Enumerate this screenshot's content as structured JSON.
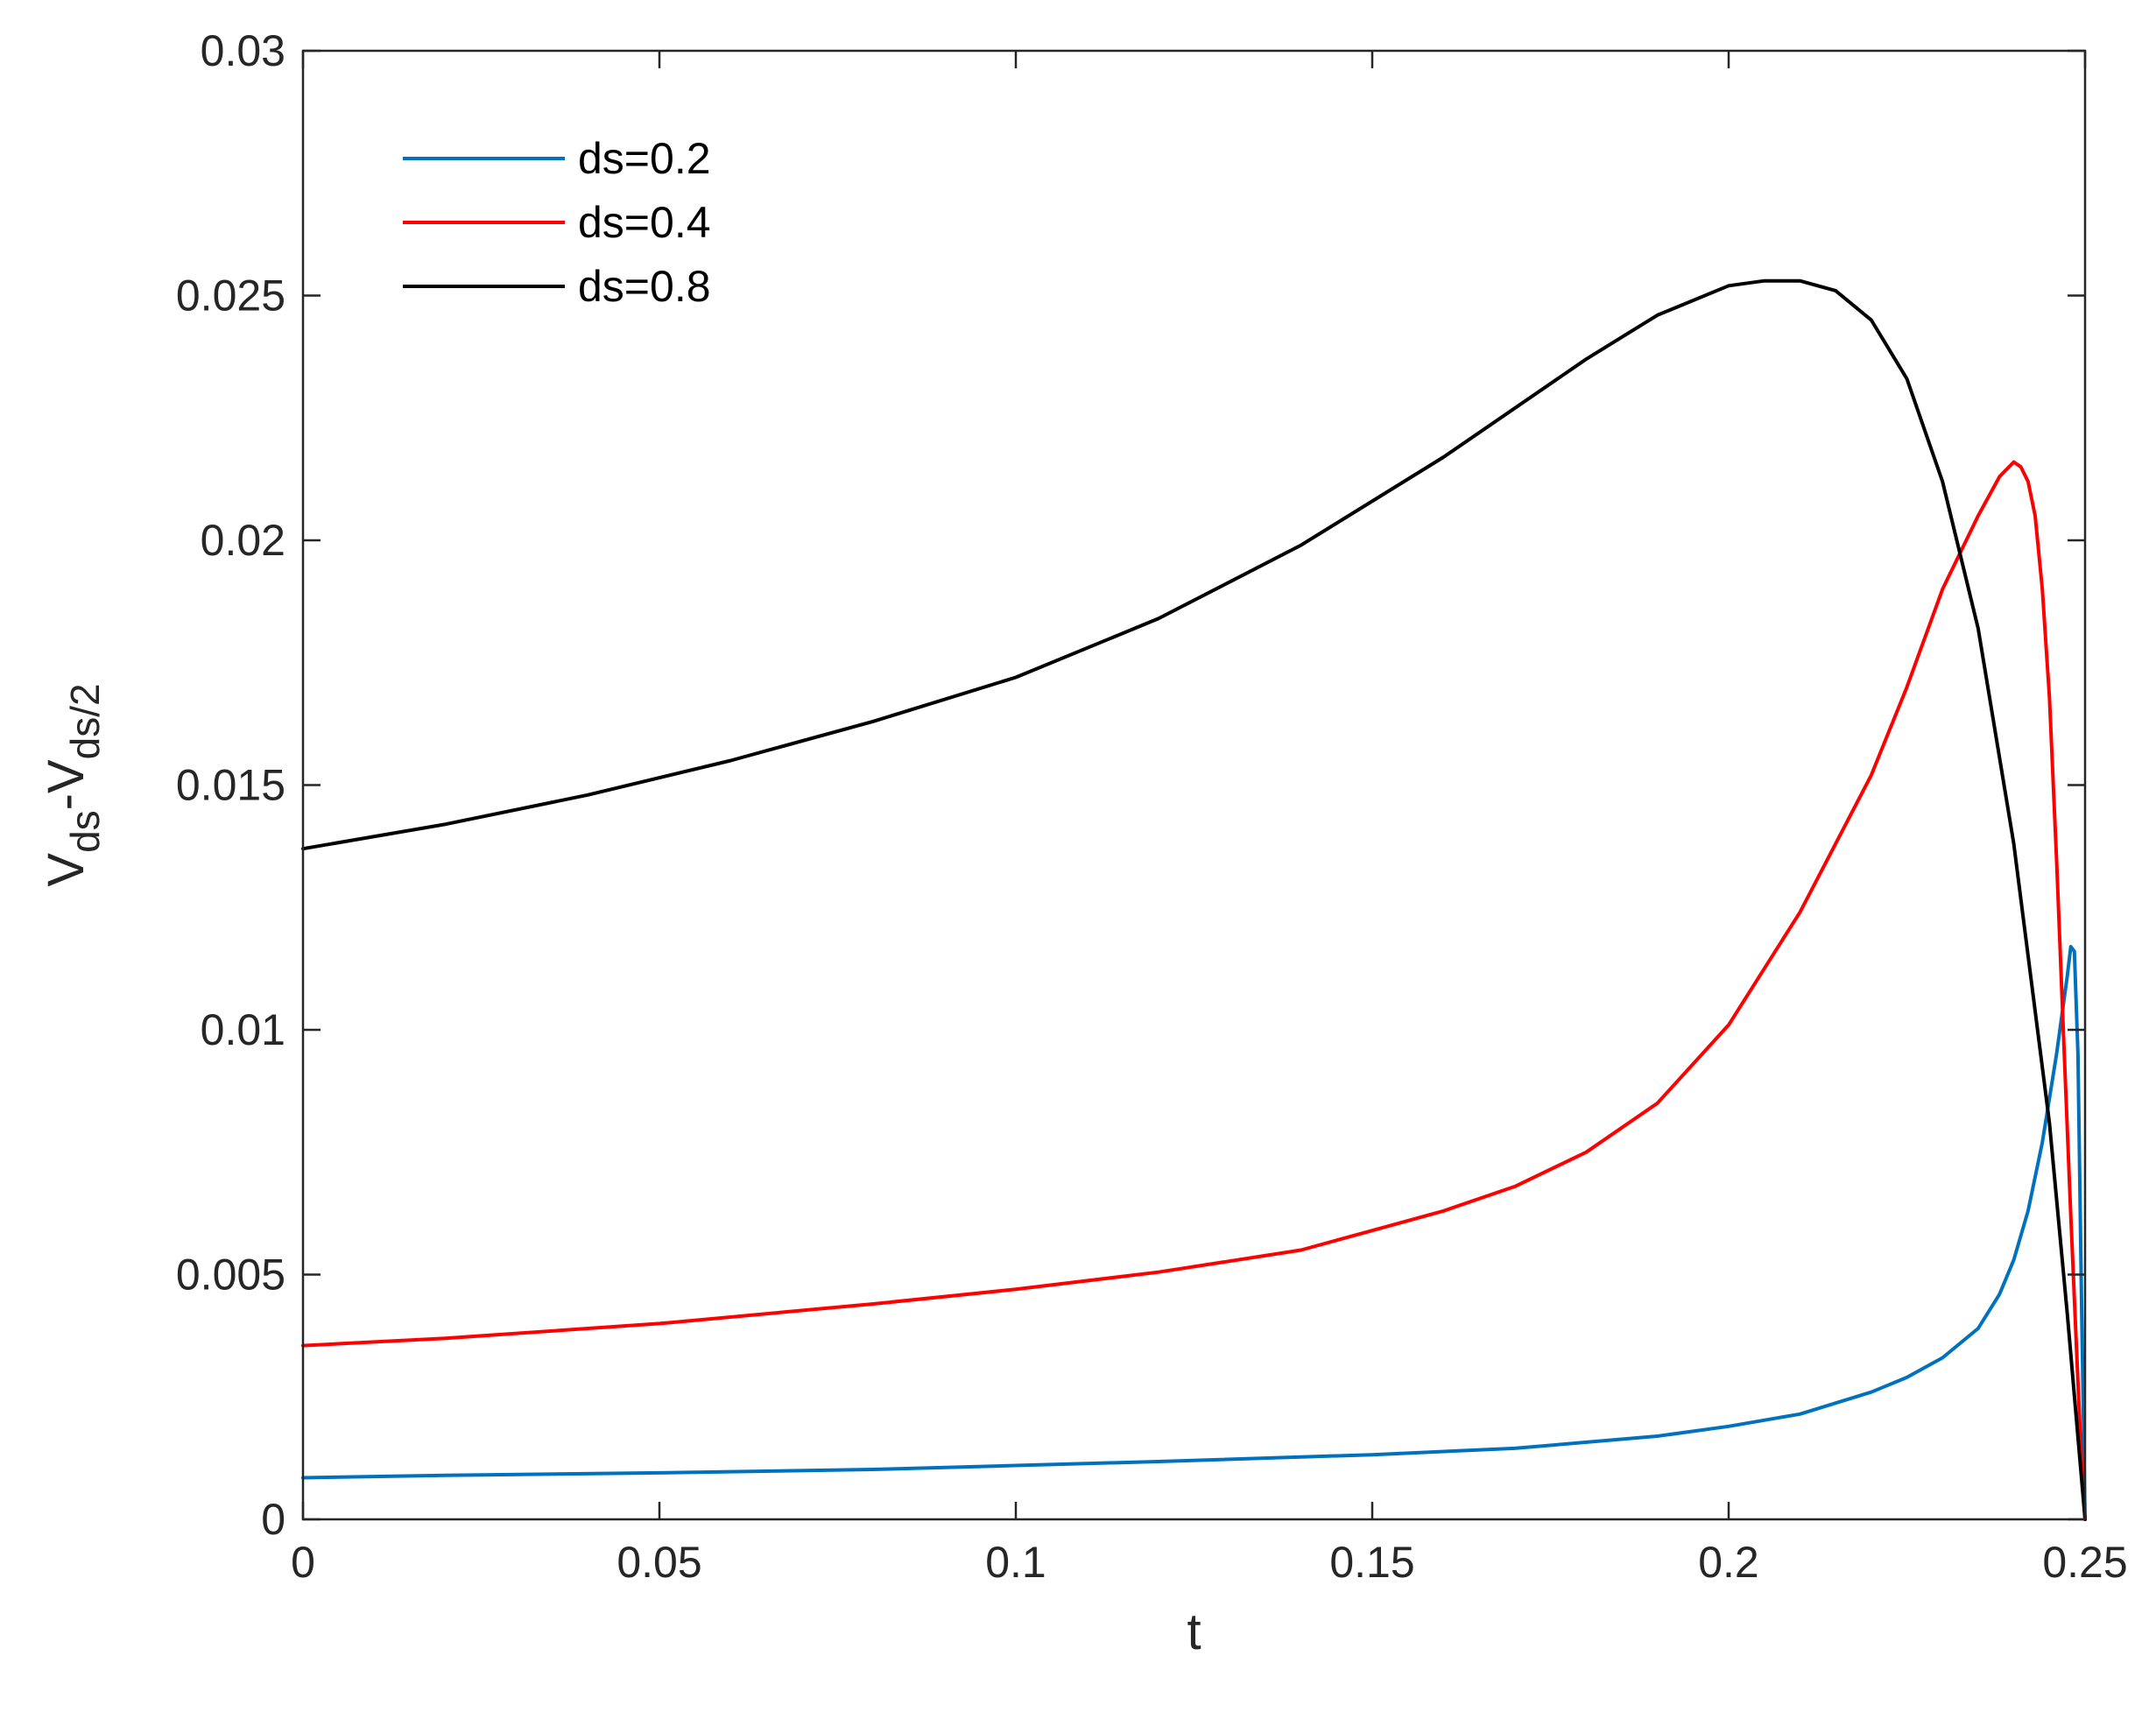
{
  "chart_data": {
    "type": "line",
    "title": "",
    "xlabel": "t",
    "ylabel": {
      "parts": [
        {
          "text": "V",
          "sub": false
        },
        {
          "text": "ds",
          "sub": true
        },
        {
          "text": "-V",
          "sub": false
        },
        {
          "text": "ds/2",
          "sub": true
        }
      ]
    },
    "xlim": [
      0,
      0.25
    ],
    "ylim": [
      0,
      0.03
    ],
    "xticks": [
      0,
      0.05,
      0.1,
      0.15,
      0.2,
      0.25
    ],
    "xtick_labels": [
      "0",
      "0.05",
      "0.1",
      "0.15",
      "0.2",
      "0.25"
    ],
    "yticks": [
      0,
      0.005,
      0.01,
      0.015,
      0.02,
      0.025,
      0.03
    ],
    "ytick_labels": [
      "0",
      "0.005",
      "0.01",
      "0.015",
      "0.02",
      "0.025",
      "0.03"
    ],
    "grid": false,
    "box": true,
    "legend_position": "top-left",
    "series": [
      {
        "name": "ds=0.2",
        "color": "#0072BD",
        "x": [
          0,
          0.02,
          0.05,
          0.08,
          0.1,
          0.12,
          0.15,
          0.17,
          0.19,
          0.2,
          0.21,
          0.22,
          0.225,
          0.23,
          0.235,
          0.238,
          0.24,
          0.242,
          0.244,
          0.246,
          0.2475,
          0.248,
          0.2485,
          0.249,
          0.2495,
          0.25
        ],
        "y": [
          0.00085,
          0.0009,
          0.00095,
          0.00102,
          0.0011,
          0.00118,
          0.00132,
          0.00145,
          0.0017,
          0.0019,
          0.00215,
          0.0026,
          0.0029,
          0.0033,
          0.0039,
          0.0046,
          0.0053,
          0.0063,
          0.0077,
          0.0095,
          0.0111,
          0.0117,
          0.0116,
          0.0095,
          0.0045,
          0
        ]
      },
      {
        "name": "ds=0.4",
        "color": "#FF0000",
        "x": [
          0,
          0.02,
          0.05,
          0.08,
          0.1,
          0.12,
          0.14,
          0.15,
          0.16,
          0.17,
          0.18,
          0.19,
          0.2,
          0.21,
          0.22,
          0.225,
          0.23,
          0.235,
          0.238,
          0.24,
          0.241,
          0.242,
          0.243,
          0.244,
          0.245,
          0.246,
          0.247,
          0.248,
          0.249,
          0.2495,
          0.25
        ],
        "y": [
          0.00355,
          0.0037,
          0.004,
          0.0044,
          0.0047,
          0.00505,
          0.0055,
          0.0059,
          0.0063,
          0.0068,
          0.0075,
          0.0085,
          0.0101,
          0.0124,
          0.0152,
          0.017,
          0.019,
          0.0205,
          0.0213,
          0.0216,
          0.0215,
          0.0212,
          0.0205,
          0.019,
          0.0168,
          0.0135,
          0.0098,
          0.0062,
          0.0028,
          0.0012,
          0
        ]
      },
      {
        "name": "ds=0.8",
        "color": "#000000",
        "x": [
          0,
          0.02,
          0.04,
          0.06,
          0.08,
          0.1,
          0.12,
          0.14,
          0.16,
          0.18,
          0.19,
          0.2,
          0.205,
          0.21,
          0.215,
          0.22,
          0.225,
          0.23,
          0.235,
          0.24,
          0.245,
          0.2475,
          0.25
        ],
        "y": [
          0.0137,
          0.0142,
          0.0148,
          0.0155,
          0.0163,
          0.0172,
          0.0184,
          0.0199,
          0.0217,
          0.0237,
          0.0246,
          0.0252,
          0.0253,
          0.0253,
          0.0251,
          0.0245,
          0.0233,
          0.0212,
          0.0182,
          0.0138,
          0.0081,
          0.0042,
          0
        ]
      }
    ]
  }
}
